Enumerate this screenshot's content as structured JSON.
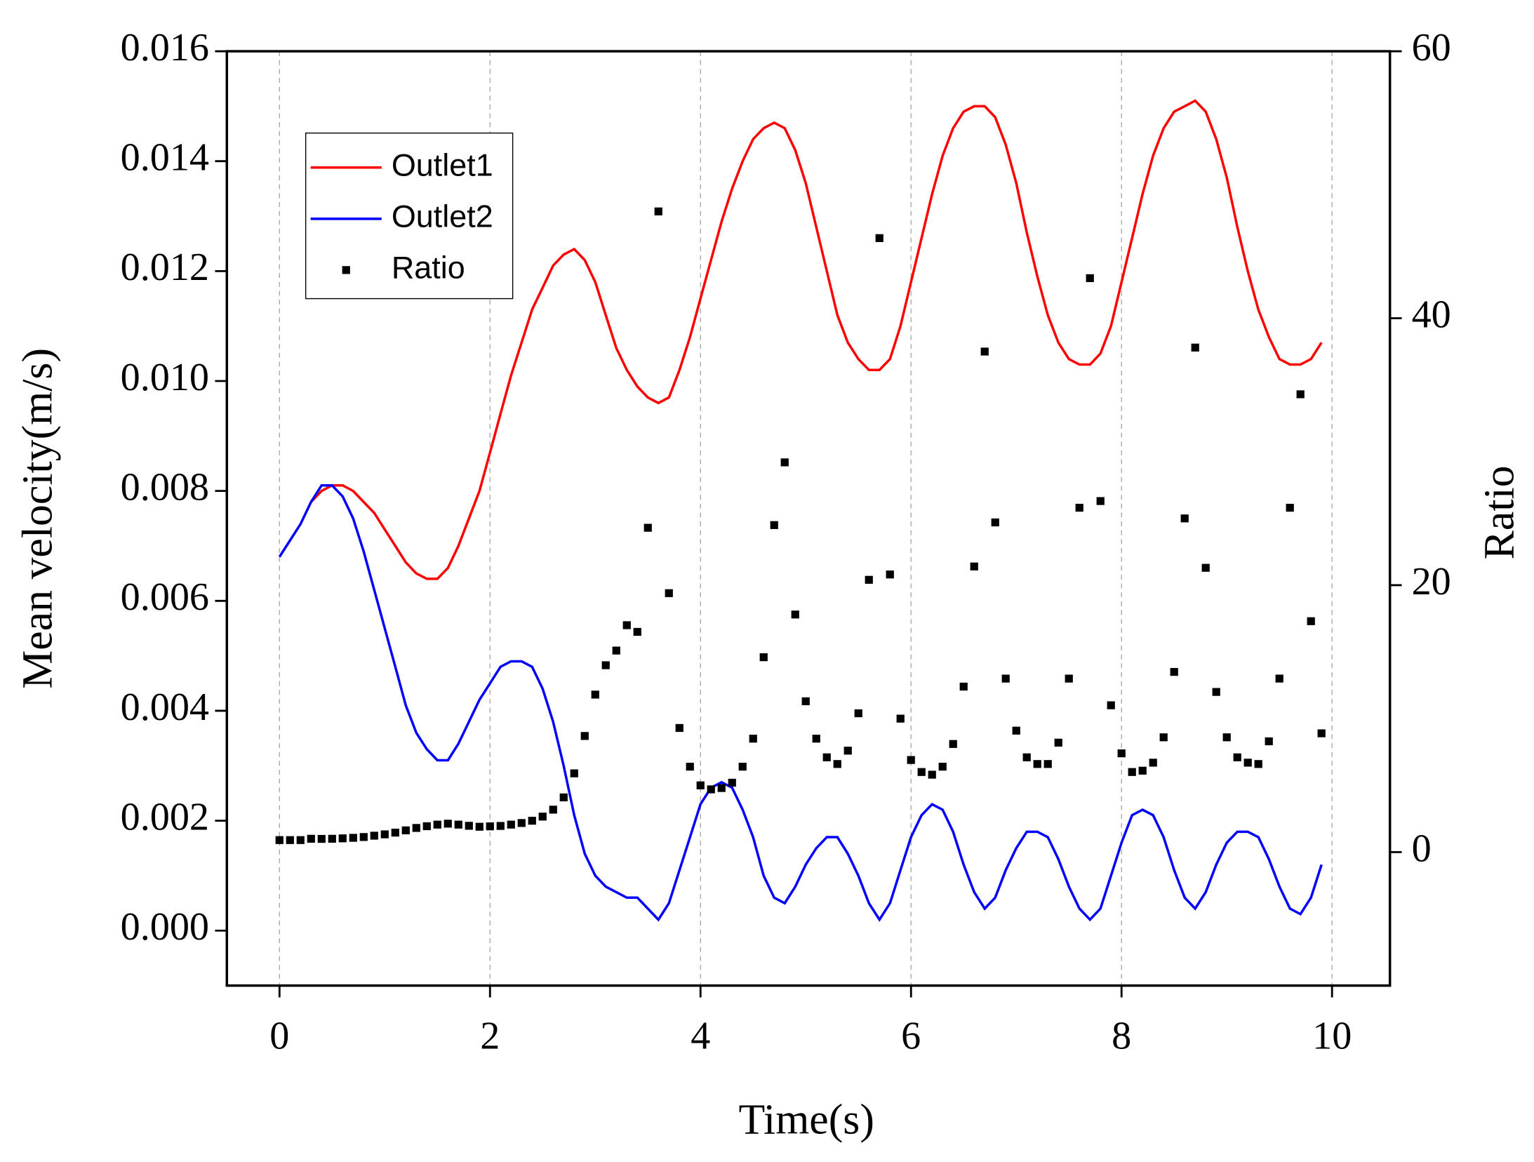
{
  "chart_data": {
    "type": "line",
    "xlabel": "Time(s)",
    "ylabel": "Mean velocity(m/s)",
    "y2label": "Ratio",
    "xlim": [
      -0.5,
      10.55
    ],
    "xticks": [
      0,
      2,
      4,
      6,
      8,
      10
    ],
    "ylim": [
      -0.001,
      0.016
    ],
    "yticks": [
      {
        "value": 0,
        "label": "0.000"
      },
      {
        "value": 0.002,
        "label": "0.002"
      },
      {
        "value": 0.004,
        "label": "0.004"
      },
      {
        "value": 0.006,
        "label": "0.006"
      },
      {
        "value": 0.008,
        "label": "0.008"
      },
      {
        "value": 0.01,
        "label": "0.010"
      },
      {
        "value": 0.012,
        "label": "0.012"
      },
      {
        "value": 0.014,
        "label": "0.014"
      },
      {
        "value": 0.016,
        "label": "0.016"
      }
    ],
    "y2lim": [
      -10,
      60
    ],
    "y2ticks": [
      0,
      20,
      40,
      60
    ],
    "grid": "x",
    "legend": "upper left",
    "x": [
      0,
      0.1,
      0.2,
      0.3,
      0.4,
      0.5,
      0.6,
      0.7,
      0.8,
      0.9,
      1,
      1.1,
      1.2,
      1.3,
      1.4,
      1.5,
      1.6,
      1.7,
      1.8,
      1.9,
      2,
      2.1,
      2.2,
      2.3,
      2.4,
      2.5,
      2.6,
      2.7,
      2.8,
      2.9,
      3,
      3.1,
      3.2,
      3.3,
      3.4,
      3.5,
      3.6,
      3.7,
      3.8,
      3.9,
      4,
      4.1,
      4.2,
      4.3,
      4.4,
      4.5,
      4.6,
      4.7,
      4.8,
      4.9,
      5,
      5.1,
      5.2,
      5.3,
      5.4,
      5.5,
      5.6,
      5.7,
      5.8,
      5.9,
      6,
      6.1,
      6.2,
      6.3,
      6.4,
      6.5,
      6.6,
      6.7,
      6.8,
      6.9,
      7,
      7.1,
      7.2,
      7.3,
      7.4,
      7.5,
      7.6,
      7.7,
      7.8,
      7.9,
      8,
      8.1,
      8.2,
      8.3,
      8.4,
      8.5,
      8.6,
      8.7,
      8.8,
      8.9,
      9,
      9.1,
      9.2,
      9.3,
      9.4,
      9.5,
      9.6,
      9.7,
      9.8,
      9.9
    ],
    "series": [
      {
        "name": "Outlet1",
        "color": "#ff0000",
        "type": "line",
        "values": [
          null,
          null,
          null,
          0.0078,
          0.008,
          0.0081,
          0.0081,
          0.008,
          0.0078,
          0.0076,
          0.0073,
          0.007,
          0.0067,
          0.0065,
          0.0064,
          0.0064,
          0.0066,
          0.007,
          0.0075,
          0.008,
          0.0087,
          0.0094,
          0.0101,
          0.0107,
          0.0113,
          0.0117,
          0.0121,
          0.0123,
          0.0124,
          0.0122,
          0.0118,
          0.0112,
          0.0106,
          0.0102,
          0.0099,
          0.0097,
          0.0096,
          0.0097,
          0.0102,
          0.0108,
          0.0115,
          0.0122,
          0.0129,
          0.0135,
          0.014,
          0.0144,
          0.0146,
          0.0147,
          0.0146,
          0.0142,
          0.0136,
          0.0128,
          0.012,
          0.0112,
          0.0107,
          0.0104,
          0.0102,
          0.0102,
          0.0104,
          0.011,
          0.0118,
          0.0126,
          0.0134,
          0.0141,
          0.0146,
          0.0149,
          0.015,
          0.015,
          0.0148,
          0.0143,
          0.0136,
          0.0127,
          0.0119,
          0.0112,
          0.0107,
          0.0104,
          0.0103,
          0.0103,
          0.0105,
          0.011,
          0.0118,
          0.0126,
          0.0134,
          0.0141,
          0.0146,
          0.0149,
          0.015,
          0.0151,
          0.0149,
          0.0144,
          0.0137,
          0.0128,
          0.012,
          0.0113,
          0.0108,
          0.0104,
          0.0103,
          0.0103,
          0.0104,
          0.0107
        ]
      },
      {
        "name": "Outlet2",
        "color": "#0000ff",
        "type": "line",
        "values": [
          0.0068,
          0.0071,
          0.0074,
          0.0078,
          0.0081,
          0.0081,
          0.0079,
          0.0075,
          0.0069,
          0.0062,
          0.0055,
          0.0048,
          0.0041,
          0.0036,
          0.0033,
          0.0031,
          0.0031,
          0.0034,
          0.0038,
          0.0042,
          0.0045,
          0.0048,
          0.0049,
          0.0049,
          0.0048,
          0.0044,
          0.0038,
          0.003,
          0.0021,
          0.0014,
          0.001,
          0.0008,
          0.0007,
          0.0006,
          0.0006,
          0.0004,
          0.0002,
          0.0005,
          0.0011,
          0.0017,
          0.0023,
          0.0026,
          0.0027,
          0.0026,
          0.0022,
          0.0017,
          0.001,
          0.0006,
          0.0005,
          0.0008,
          0.0012,
          0.0015,
          0.0017,
          0.0017,
          0.0014,
          0.001,
          0.0005,
          0.0002,
          0.0005,
          0.0011,
          0.0017,
          0.0021,
          0.0023,
          0.0022,
          0.0018,
          0.0012,
          0.0007,
          0.0004,
          0.0006,
          0.0011,
          0.0015,
          0.0018,
          0.0018,
          0.0017,
          0.0013,
          0.0008,
          0.0004,
          0.0002,
          0.0004,
          0.001,
          0.0016,
          0.0021,
          0.0022,
          0.0021,
          0.0017,
          0.0011,
          0.0006,
          0.0004,
          0.0007,
          0.0012,
          0.0016,
          0.0018,
          0.0018,
          0.0017,
          0.0013,
          0.0008,
          0.0004,
          0.0003,
          0.0006,
          0.0012
        ]
      },
      {
        "name": "Ratio",
        "color": "#000000",
        "type": "scatter",
        "axis": "y2",
        "values": [
          0.9,
          0.9,
          0.9,
          1,
          0.99,
          1,
          1.03,
          1.07,
          1.13,
          1.23,
          1.33,
          1.46,
          1.63,
          1.81,
          1.94,
          2.06,
          2.13,
          2.06,
          1.97,
          1.9,
          1.93,
          1.96,
          2.06,
          2.18,
          2.35,
          2.66,
          3.18,
          4.1,
          5.9,
          8.7,
          11.8,
          14,
          15.1,
          17,
          16.5,
          24.3,
          48,
          19.4,
          9.3,
          6.4,
          5,
          4.7,
          4.8,
          5.2,
          6.4,
          8.5,
          14.6,
          24.5,
          29.2,
          17.8,
          11.3,
          8.5,
          7.1,
          6.6,
          7.6,
          10.4,
          20.4,
          46,
          20.8,
          10,
          6.9,
          6,
          5.8,
          6.4,
          8.1,
          12.4,
          21.4,
          37.5,
          24.7,
          13,
          9.1,
          7.1,
          6.6,
          6.6,
          8.2,
          13,
          25.8,
          43,
          26.3,
          11,
          7.4,
          6,
          6.1,
          6.7,
          8.6,
          13.5,
          25,
          37.8,
          21.3,
          12,
          8.6,
          7.1,
          6.7,
          6.6,
          8.3,
          13,
          25.8,
          34.3,
          17.3,
          8.9
        ]
      }
    ]
  }
}
